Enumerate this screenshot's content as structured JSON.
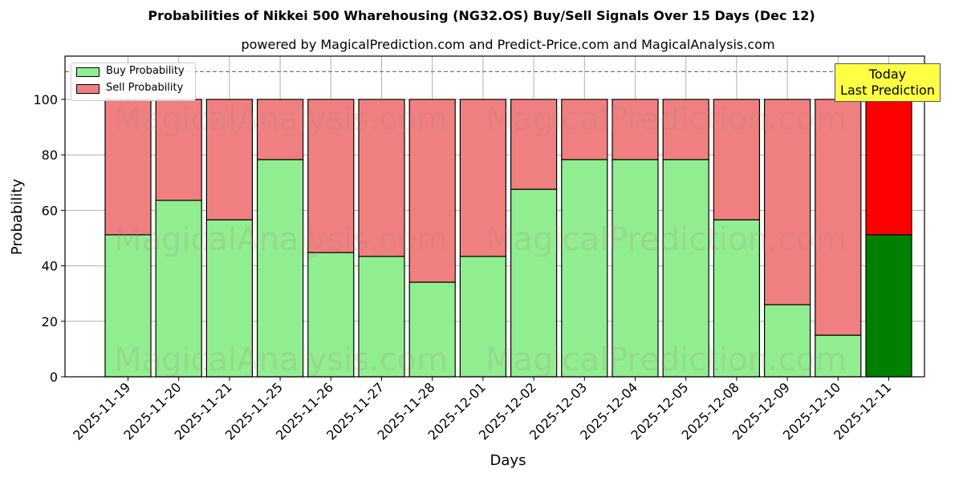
{
  "chart_data": {
    "type": "bar",
    "stacked": true,
    "title": "Probabilities of Nikkei 500 Wharehousing (NG32.OS) Buy/Sell Signals Over 15 Days (Dec 12)",
    "subtitle": "powered by MagicalPrediction.com and Predict-Price.com and MagicalAnalysis.com",
    "xlabel": "Days",
    "ylabel": "Probability",
    "ylim": [
      0,
      115
    ],
    "yticks": [
      0,
      20,
      40,
      60,
      80,
      100
    ],
    "grid": true,
    "legend_position": "upper left",
    "categories": [
      "2025-11-19",
      "2025-11-20",
      "2025-11-21",
      "2025-11-25",
      "2025-11-26",
      "2025-11-27",
      "2025-11-28",
      "2025-12-01",
      "2025-12-02",
      "2025-12-03",
      "2025-12-04",
      "2025-12-05",
      "2025-12-08",
      "2025-12-09",
      "2025-12-10",
      "2025-12-11"
    ],
    "series": [
      {
        "name": "Buy Probability",
        "color": "#90ee90",
        "values": [
          51.2,
          63.6,
          56.6,
          78.3,
          44.8,
          43.4,
          34.1,
          43.4,
          67.6,
          78.3,
          78.3,
          78.3,
          56.6,
          26.0,
          15.0,
          51.2
        ]
      },
      {
        "name": "Sell Probability",
        "color": "#f08080",
        "values": [
          48.8,
          36.4,
          43.4,
          21.7,
          55.2,
          56.6,
          65.9,
          56.6,
          32.4,
          21.7,
          21.7,
          21.7,
          43.4,
          74.0,
          85.0,
          48.8
        ]
      }
    ],
    "highlight": {
      "index": 15,
      "buy_color": "#008000",
      "sell_color": "#ff0000"
    },
    "reference_line": 110,
    "annotation": {
      "line1": "Today",
      "line2": "Last Prediction"
    },
    "watermarks": [
      "MagicalAnalysis.com",
      "MagicalPrediction.com"
    ]
  }
}
